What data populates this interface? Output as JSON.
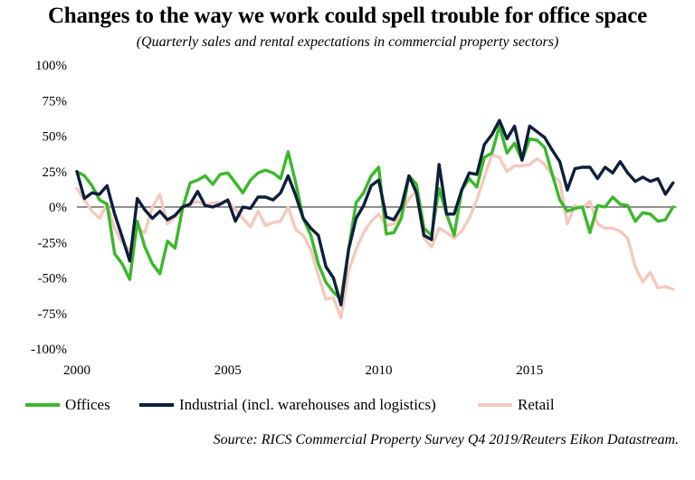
{
  "chart_data": {
    "type": "line",
    "title": "Changes to the way we work could spell trouble for office space",
    "subtitle": "(Quarterly sales and rental expectations in commercial property sectors)",
    "source": "Source: RICS Commercial Property Survey Q4 2019/Reuters Eikon Datastream.",
    "y_unit": "%",
    "ylim": [
      -100,
      100
    ],
    "y_ticks": [
      100,
      75,
      50,
      25,
      0,
      -25,
      -50,
      -75,
      -100
    ],
    "y_tick_labels": [
      "100%",
      "75%",
      "50%",
      "25%",
      "0%",
      "-25%",
      "-50%",
      "-75%",
      "-100%"
    ],
    "xlim": [
      2000,
      2020
    ],
    "x_ticks": [
      2000,
      2005,
      2010,
      2015
    ],
    "x_tick_labels": [
      "2000",
      "2005",
      "2010",
      "2015"
    ],
    "grid": false,
    "legend_position": "bottom",
    "x": [
      2000.0,
      2000.25,
      2000.5,
      2000.75,
      2001.0,
      2001.25,
      2001.5,
      2001.75,
      2002.0,
      2002.25,
      2002.5,
      2002.75,
      2003.0,
      2003.25,
      2003.5,
      2003.75,
      2004.0,
      2004.25,
      2004.5,
      2004.75,
      2005.0,
      2005.25,
      2005.5,
      2005.75,
      2006.0,
      2006.25,
      2006.5,
      2006.75,
      2007.0,
      2007.25,
      2007.5,
      2007.75,
      2008.0,
      2008.25,
      2008.5,
      2008.75,
      2009.0,
      2009.25,
      2009.5,
      2009.75,
      2010.0,
      2010.25,
      2010.5,
      2010.75,
      2011.0,
      2011.25,
      2011.5,
      2011.75,
      2012.0,
      2012.25,
      2012.5,
      2012.75,
      2013.0,
      2013.25,
      2013.5,
      2013.75,
      2014.0,
      2014.25,
      2014.5,
      2014.75,
      2015.0,
      2015.25,
      2015.5,
      2015.75,
      2016.0,
      2016.25,
      2016.5,
      2016.75,
      2017.0,
      2017.25,
      2017.5,
      2017.75,
      2018.0,
      2018.25,
      2018.5,
      2018.75,
      2019.0,
      2019.25,
      2019.5,
      2019.75
    ],
    "series": [
      {
        "name": "Offices",
        "color": "#3bb82a",
        "values": [
          25,
          22,
          15,
          5,
          2,
          -33,
          -40,
          -51,
          -10,
          -28,
          -40,
          -47,
          -24,
          -29,
          -1,
          17,
          19,
          22,
          16,
          23,
          24,
          17,
          10,
          19,
          24,
          26,
          24,
          20,
          39,
          17,
          -8,
          -20,
          -40,
          -53,
          -60,
          -65,
          -30,
          3,
          10,
          22,
          28,
          -19,
          -18,
          -8,
          22,
          16,
          -15,
          -20,
          13,
          -5,
          -20,
          12,
          20,
          14,
          35,
          38,
          57,
          38,
          45,
          33,
          48,
          47,
          42,
          23,
          5,
          -3,
          -1,
          0,
          -18,
          1,
          0,
          7,
          2,
          1,
          -10,
          -4,
          -5,
          -10,
          -9,
          0
        ]
      },
      {
        "name": "Industrial (incl. warehouses and logistics)",
        "color": "#0d1f3c",
        "values": [
          25,
          6,
          10,
          9,
          15,
          -5,
          -21,
          -38,
          6,
          -2,
          -8,
          -3,
          -9,
          -6,
          0,
          2,
          11,
          1,
          0,
          2,
          5,
          -10,
          0,
          -1,
          7,
          7,
          5,
          10,
          22,
          8,
          -8,
          -15,
          -20,
          -42,
          -50,
          -69,
          -30,
          -8,
          1,
          15,
          19,
          -7,
          -9,
          0,
          22,
          10,
          -20,
          -23,
          30,
          -5,
          -5,
          12,
          24,
          23,
          44,
          51,
          61,
          48,
          57,
          33,
          57,
          53,
          49,
          40,
          32,
          12,
          27,
          28,
          28,
          20,
          28,
          24,
          32,
          24,
          18,
          21,
          18,
          20,
          9,
          17
        ]
      },
      {
        "name": "Retail",
        "color": "#f4c9bd",
        "values": [
          13,
          5,
          -3,
          -8,
          2,
          -15,
          -25,
          -31,
          -15,
          -18,
          0,
          9,
          -12,
          -7,
          0,
          2,
          4,
          1,
          3,
          3,
          5,
          -2,
          -8,
          -14,
          -3,
          -13,
          -11,
          -10,
          0,
          -16,
          -20,
          -30,
          -48,
          -65,
          -64,
          -78,
          -45,
          -30,
          -18,
          -10,
          -5,
          -13,
          -12,
          -5,
          6,
          11,
          -22,
          -28,
          -15,
          -18,
          -22,
          -17,
          -8,
          5,
          21,
          37,
          35,
          25,
          29,
          29,
          30,
          34,
          30,
          22,
          18,
          -12,
          1,
          -1,
          4,
          -12,
          -15,
          -15,
          -17,
          -22,
          -42,
          -53,
          -46,
          -57,
          -56,
          -58
        ]
      }
    ]
  }
}
